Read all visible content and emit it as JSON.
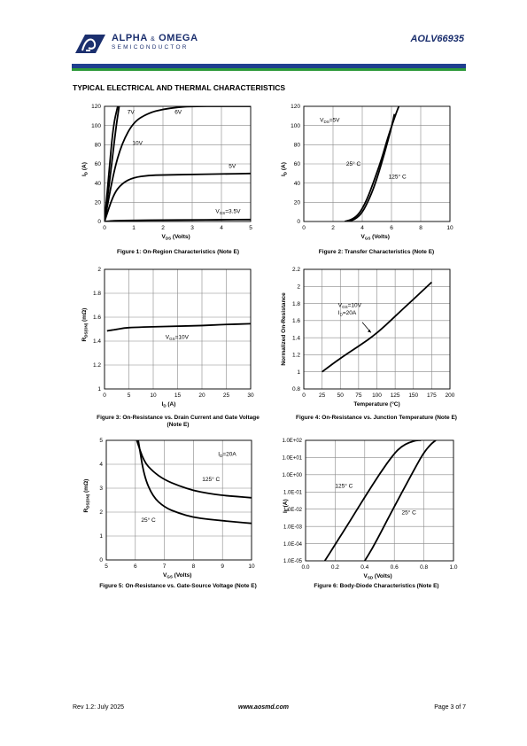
{
  "header": {
    "company_line1": "ALPHA",
    "company_amp": "&",
    "company_line1b": "OMEGA",
    "company_line2": "SEMICONDUCTOR",
    "part_number": "AOLV66935",
    "bar_colors": [
      "#1f3f8f",
      "#2e9a3a"
    ]
  },
  "section_title": "TYPICAL ELECTRICAL AND THERMAL CHARACTERISTICS",
  "figures": [
    {
      "id": "fig1",
      "caption": "Figure 1: On-Region Characteristics (Note E)",
      "chart_data": {
        "type": "line",
        "xlabel_main": "V",
        "xlabel_sub": "DS",
        "xlabel_tail": " (Volts)",
        "ylabel_main": "I",
        "ylabel_sub": "D",
        "ylabel_tail": " (A)",
        "xlim": [
          0,
          5
        ],
        "ylim": [
          0,
          120
        ],
        "xticks": [
          0,
          1,
          2,
          3,
          4,
          5
        ],
        "yticks": [
          0,
          20,
          40,
          60,
          80,
          100,
          120
        ],
        "grid": true,
        "series": [
          {
            "name": "7V",
            "x": [
              0,
              0.2,
              0.4,
              0.5
            ],
            "y": [
              0,
              48,
              100,
              125
            ]
          },
          {
            "name": "6V",
            "x": [
              0,
              0.3,
              0.6,
              1.0,
              1.5,
              2.0,
              2.5,
              3.0,
              4.0,
              5.0
            ],
            "y": [
              0,
              50,
              82,
              104,
              113,
              117,
              119,
              120,
              120,
              120
            ]
          },
          {
            "name": "10V",
            "x": [
              0,
              0.15,
              0.3,
              0.45
            ],
            "y": [
              0,
              50,
              100,
              125
            ]
          },
          {
            "name": "5V",
            "x": [
              0,
              0.3,
              0.6,
              1.0,
              1.5,
              2.0,
              3.0,
              4.0,
              5.0
            ],
            "y": [
              0,
              28,
              40,
              46,
              48,
              48.5,
              49,
              49.5,
              50
            ]
          },
          {
            "name": "V_GS=3.5V",
            "x": [
              0,
              0.3,
              1.0,
              2.0,
              3.0,
              4.0,
              5.0
            ],
            "y": [
              0,
              0.8,
              1.2,
              1.5,
              1.7,
              1.9,
              2.0
            ]
          }
        ],
        "annotations": [
          {
            "text": "7V",
            "x": 0.78,
            "y": 112
          },
          {
            "text": "6V",
            "x": 2.4,
            "y": 112
          },
          {
            "text": "10V",
            "x": 0.95,
            "y": 80
          },
          {
            "text": "5V",
            "x": 4.25,
            "y": 56
          },
          {
            "main": "V",
            "sub": "GS",
            "tail": "=3.5V",
            "x": 3.8,
            "y": 9
          }
        ]
      }
    },
    {
      "id": "fig2",
      "caption": "Figure 2: Transfer Characteristics (Note E)",
      "chart_data": {
        "type": "line",
        "xlabel_main": "V",
        "xlabel_sub": "GS",
        "xlabel_tail": " (Volts)",
        "ylabel_main": "I",
        "ylabel_sub": "D",
        "ylabel_tail": " (A)",
        "xlim": [
          0,
          10
        ],
        "ylim": [
          0,
          120
        ],
        "xticks": [
          0,
          2,
          4,
          6,
          8,
          10
        ],
        "yticks": [
          0,
          20,
          40,
          60,
          80,
          100,
          120
        ],
        "grid": true,
        "series": [
          {
            "name": "25°C",
            "x": [
              3.0,
              3.5,
              4.0,
              4.5,
              5.0,
              5.5,
              6.0,
              6.2
            ],
            "y": [
              0,
              2,
              9,
              24,
              44,
              70,
              98,
              112
            ]
          },
          {
            "name": "125°C",
            "x": [
              2.8,
              3.3,
              3.8,
              4.3,
              4.8,
              5.3,
              5.8,
              6.3,
              6.5
            ],
            "y": [
              0,
              2,
              8,
              22,
              42,
              64,
              90,
              112,
              120
            ]
          }
        ],
        "annotations": [
          {
            "main": "V",
            "sub": "DS",
            "tail": "=5V",
            "x": 1.1,
            "y": 104
          },
          {
            "text": "25°  C",
            "x": 2.9,
            "y": 58
          },
          {
            "text": "125°  C",
            "x": 5.8,
            "y": 45
          }
        ]
      }
    },
    {
      "id": "fig3",
      "caption": "Figure 3: On-Resistance vs. Drain Current and Gate Voltage (Note E)",
      "chart_data": {
        "type": "line",
        "xlabel_main": "I",
        "xlabel_sub": "D",
        "xlabel_tail": " (A)",
        "ylabel_main": "R",
        "ylabel_sub": "DS(ON)",
        "ylabel_tail": " (mΩ)",
        "xlim": [
          0,
          30
        ],
        "ylim": [
          1,
          2
        ],
        "xticks": [
          0,
          5,
          10,
          15,
          20,
          25,
          30
        ],
        "yticks": [
          "1",
          "1.2",
          "1.4",
          "1.6",
          "1.8",
          "2"
        ],
        "grid": true,
        "series": [
          {
            "name": "V_GS=10V",
            "x": [
              0.5,
              2,
              4,
              6,
              10,
              15,
              20,
              25,
              30
            ],
            "y": [
              1.485,
              1.495,
              1.51,
              1.515,
              1.52,
              1.525,
              1.53,
              1.54,
              1.545
            ]
          }
        ],
        "annotations": [
          {
            "main": "V",
            "sub": "GS",
            "tail": "=10V",
            "x": 12.5,
            "y": 1.42
          }
        ]
      }
    },
    {
      "id": "fig4",
      "caption": "Figure 4: On-Resistance vs. Junction Temperature (Note E)",
      "chart_data": {
        "type": "line",
        "xlabel": "Temperature (°C)",
        "ylabel": "Normalized On-Resistance",
        "xlim": [
          0,
          200
        ],
        "ylim": [
          0.8,
          2.2
        ],
        "xticks": [
          0,
          25,
          50,
          75,
          100,
          125,
          150,
          175,
          200
        ],
        "yticks": [
          "0.8",
          "1",
          "1.2",
          "1.4",
          "1.6",
          "1.8",
          "2",
          "2.2"
        ],
        "grid": true,
        "series": [
          {
            "name": "V_GS=10V, I_D=20A",
            "x": [
              25,
              50,
              75,
              100,
              125,
              150,
              175
            ],
            "y": [
              1.0,
              1.16,
              1.3,
              1.45,
              1.65,
              1.85,
              2.05
            ]
          }
        ],
        "annotations": [
          {
            "main": "V",
            "sub": "GS",
            "tail": "=10V",
            "x": 47,
            "y": 1.76
          },
          {
            "main": "I",
            "sub": "D",
            "tail": "=20A",
            "x": 47,
            "y": 1.67
          }
        ]
      }
    },
    {
      "id": "fig5",
      "caption": "Figure 5: On-Resistance vs. Gate-Source Voltage (Note E)",
      "chart_data": {
        "type": "line",
        "xlabel_main": "V",
        "xlabel_sub": "GS",
        "xlabel_tail": " (Volts)",
        "ylabel_main": "R",
        "ylabel_sub": "DS(ON)",
        "ylabel_tail": " (mΩ)",
        "xlim": [
          5,
          10
        ],
        "ylim": [
          0,
          5
        ],
        "xticks": [
          5,
          6,
          7,
          8,
          9,
          10
        ],
        "yticks": [
          0,
          1,
          2,
          3,
          4,
          5
        ],
        "grid": true,
        "series": [
          {
            "name": "125°C",
            "x": [
              6.05,
              6.3,
              6.6,
              7.0,
              7.5,
              8.0,
              8.5,
              9.0,
              9.5,
              10.0
            ],
            "y": [
              5.0,
              4.1,
              3.7,
              3.35,
              3.1,
              2.9,
              2.78,
              2.7,
              2.65,
              2.6
            ]
          },
          {
            "name": "25°C",
            "x": [
              6.1,
              6.3,
              6.6,
              7.0,
              7.5,
              8.0,
              8.5,
              9.0,
              9.5,
              10.0
            ],
            "y": [
              5.0,
              3.5,
              2.65,
              2.2,
              1.95,
              1.78,
              1.7,
              1.64,
              1.58,
              1.53
            ]
          }
        ],
        "annotations": [
          {
            "main": "I",
            "sub": "D",
            "tail": "=20A",
            "x": 8.85,
            "y": 4.35
          },
          {
            "text": "125°  C",
            "x": 8.3,
            "y": 3.3
          },
          {
            "text": "25°  C",
            "x": 6.2,
            "y": 1.6
          }
        ]
      }
    },
    {
      "id": "fig6",
      "caption": "Figure 6: Body-Diode Characteristics (Note E)",
      "chart_data": {
        "type": "line",
        "xlabel_main": "V",
        "xlabel_sub": "SD",
        "xlabel_tail": " (Volts)",
        "ylabel_main": "I",
        "ylabel_sub": "S",
        "ylabel_tail": " (A)",
        "xlim": [
          0,
          1
        ],
        "ylim": [
          -5,
          2
        ],
        "ylog": true,
        "xticks": [
          "0.0",
          "0.2",
          "0.4",
          "0.6",
          "0.8",
          "1.0"
        ],
        "yticks": [
          "1.0E-05",
          "1.0E-04",
          "1.0E-03",
          "1.0E-02",
          "1.0E-01",
          "1.0E+00",
          "1.0E+01",
          "1.0E+02"
        ],
        "ytick_exps": [
          -5,
          -4,
          -3,
          -2,
          -1,
          0,
          1,
          2
        ],
        "grid": true,
        "series": [
          {
            "name": "125°C",
            "x": [
              0.13,
              0.2,
              0.3,
              0.4,
              0.5,
              0.6,
              0.65,
              0.7,
              0.75,
              0.78
            ],
            "log10y": [
              -5.0,
              -4.05,
              -2.7,
              -1.3,
              0.05,
              1.25,
              1.65,
              1.88,
              2.0,
              2.05
            ]
          },
          {
            "name": "25°C",
            "x": [
              0.4,
              0.45,
              0.5,
              0.6,
              0.7,
              0.75,
              0.8,
              0.85,
              0.88
            ],
            "log10y": [
              -5.0,
              -4.3,
              -3.5,
              -1.85,
              -0.25,
              0.55,
              1.3,
              1.8,
              2.0
            ]
          }
        ],
        "annotations": [
          {
            "text": "125°  C",
            "x": 0.2,
            "log10y": -0.75
          },
          {
            "text": "25°  C",
            "x": 0.65,
            "log10y": -2.3
          }
        ]
      }
    }
  ],
  "footer": {
    "revision": "Rev 1.2: July 2025",
    "website": "www.aosmd.com",
    "page": "Page 3 of 7"
  }
}
